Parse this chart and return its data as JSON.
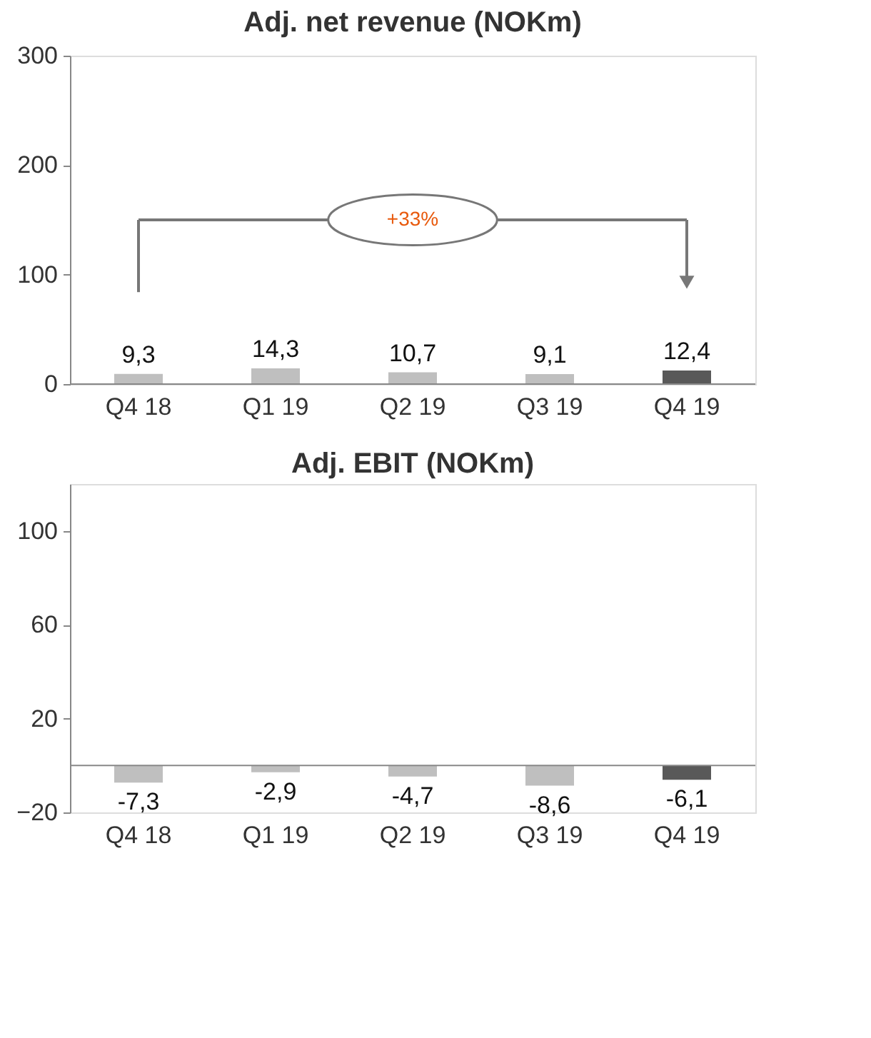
{
  "chart_data": [
    {
      "type": "bar",
      "title": "Adj. net revenue (NOKm)",
      "categories": [
        "Q4 18",
        "Q1 19",
        "Q2 19",
        "Q3 19",
        "Q4 19"
      ],
      "values": [
        9.3,
        14.3,
        10.7,
        9.1,
        12.4
      ],
      "colors": [
        "#bfbfbf",
        "#bfbfbf",
        "#bfbfbf",
        "#bfbfbf",
        "#595959"
      ],
      "value_labels": [
        "9,3",
        "14,3",
        "10,7",
        "9,1",
        "12,4"
      ],
      "ylim": [
        0,
        300
      ],
      "yticks": [
        0,
        100,
        200,
        300
      ],
      "annotations": [
        "+33%"
      ],
      "grid": false
    },
    {
      "type": "bar",
      "title": "Adj. EBIT (NOKm)",
      "categories": [
        "Q4 18",
        "Q1 19",
        "Q2 19",
        "Q3 19",
        "Q4 19"
      ],
      "values": [
        -7.3,
        -2.9,
        -4.7,
        -8.6,
        -6.1
      ],
      "colors": [
        "#bfbfbf",
        "#bfbfbf",
        "#bfbfbf",
        "#bfbfbf",
        "#595959"
      ],
      "value_labels": [
        "-7,3",
        "-2,9",
        "-4,7",
        "-8,6",
        "-6,1"
      ],
      "ylim": [
        -20,
        120
      ],
      "yticks": [
        -20,
        20,
        60,
        100
      ],
      "grid": false
    }
  ]
}
